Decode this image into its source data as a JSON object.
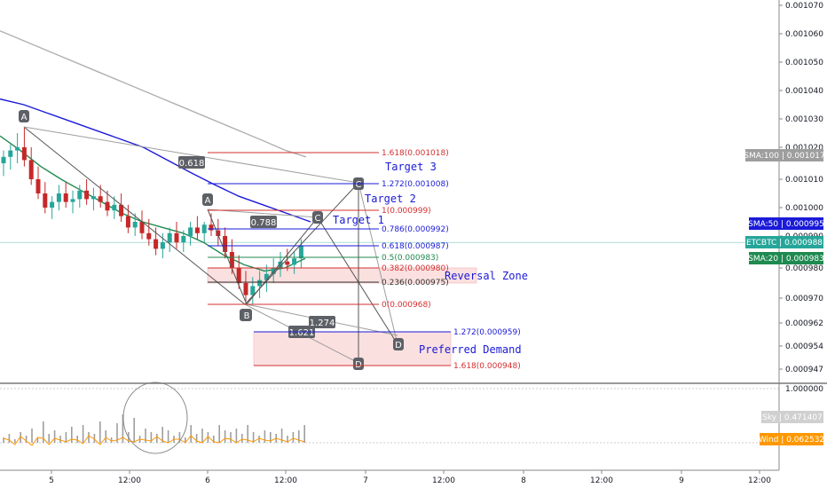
{
  "chart_data": {
    "type": "candlestick",
    "title": "",
    "xlabel": "",
    "ylabel": "",
    "ylim": [
      0.000941,
      0.00107
    ],
    "x_ticks": [
      "5",
      "12:00",
      "6",
      "12:00",
      "7",
      "12:00",
      "8",
      "12:00",
      "9",
      "12:00"
    ],
    "y_ticks": [
      "0.001070",
      "0.001060",
      "0.001050",
      "0.001040",
      "0.001030",
      "0.001020",
      "0.001010",
      "0.001000",
      "0.000990",
      "0.000980",
      "0.000970",
      "0.000962",
      "0.000954",
      "0.000947"
    ],
    "candles_ohlc": [
      [
        0.001015,
        0.001019,
        0.001011,
        0.001017
      ],
      [
        0.001017,
        0.001021,
        0.001013,
        0.001019
      ],
      [
        0.001019,
        0.001025,
        0.001015,
        0.00102
      ],
      [
        0.00102,
        0.001027,
        0.001014,
        0.001016
      ],
      [
        0.001016,
        0.00102,
        0.001008,
        0.00101
      ],
      [
        0.00101,
        0.001014,
        0.001003,
        0.001005
      ],
      [
        0.001005,
        0.001009,
        0.000998,
        0.001
      ],
      [
        0.001,
        0.001004,
        0.000996,
        0.001002
      ],
      [
        0.001002,
        0.001008,
        0.000999,
        0.001005
      ],
      [
        0.001005,
        0.001009,
        0.001,
        0.001002
      ],
      [
        0.001002,
        0.001006,
        0.000998,
        0.001003
      ],
      [
        0.001003,
        0.001008,
        0.001,
        0.001006
      ],
      [
        0.001006,
        0.00101,
        0.001001,
        0.001003
      ],
      [
        0.001003,
        0.001007,
        0.000999,
        0.001004
      ],
      [
        0.001004,
        0.001008,
        0.001,
        0.001002
      ],
      [
        0.001002,
        0.001006,
        0.000997,
        0.000999
      ],
      [
        0.000999,
        0.001004,
        0.000996,
        0.001001
      ],
      [
        0.001001,
        0.001005,
        0.000995,
        0.000997
      ],
      [
        0.000997,
        0.001001,
        0.000991,
        0.000993
      ],
      [
        0.000993,
        0.000998,
        0.00099,
        0.000995
      ],
      [
        0.000995,
        0.000999,
        0.000989,
        0.000991
      ],
      [
        0.000991,
        0.000996,
        0.000987,
        0.000989
      ],
      [
        0.000989,
        0.000993,
        0.000984,
        0.000986
      ],
      [
        0.000986,
        0.000991,
        0.000983,
        0.000988
      ],
      [
        0.000988,
        0.000993,
        0.000985,
        0.000991
      ],
      [
        0.000991,
        0.000995,
        0.000986,
        0.000988
      ],
      [
        0.000988,
        0.000992,
        0.000985,
        0.00099
      ],
      [
        0.00099,
        0.000995,
        0.000987,
        0.000993
      ],
      [
        0.000993,
        0.000997,
        0.000989,
        0.000991
      ],
      [
        0.000991,
        0.000995,
        0.000988,
        0.000994
      ],
      [
        0.000994,
        0.000998,
        0.00099,
        0.000992
      ],
      [
        0.000992,
        0.000996,
        0.000987,
        0.00099
      ],
      [
        0.00099,
        0.000993,
        0.000983,
        0.000985
      ],
      [
        0.000985,
        0.000989,
        0.000978,
        0.00098
      ],
      [
        0.00098,
        0.000984,
        0.000973,
        0.000975
      ],
      [
        0.000975,
        0.000979,
        0.000969,
        0.000971
      ],
      [
        0.000971,
        0.000977,
        0.000968,
        0.000974
      ],
      [
        0.000974,
        0.000979,
        0.00097,
        0.000976
      ],
      [
        0.000976,
        0.000981,
        0.000972,
        0.000978
      ],
      [
        0.000978,
        0.000983,
        0.000975,
        0.00098
      ],
      [
        0.00098,
        0.000985,
        0.000977,
        0.000982
      ],
      [
        0.000982,
        0.000986,
        0.000979,
        0.000981
      ],
      [
        0.000981,
        0.000985,
        0.000978,
        0.000983
      ],
      [
        0.000983,
        0.000989,
        0.00098,
        0.000987
      ]
    ],
    "sma_series": [
      {
        "name": "SMA:100",
        "value": "0.001017",
        "color": "#b0b0b0",
        "values": [
          0.001061,
          0.001058,
          0.001055,
          0.001052,
          0.001049,
          0.001046,
          0.001043,
          0.00104,
          0.001037,
          0.001034,
          0.001031,
          0.001028,
          0.001025,
          0.001022,
          0.001019,
          0.001017
        ]
      },
      {
        "name": "SMA:50",
        "value": "0.000995",
        "color": "#1a1ad8",
        "values": [
          0.001037,
          0.001035,
          0.001032,
          0.001029,
          0.001026,
          0.001023,
          0.00102,
          0.001016,
          0.001012,
          0.001008,
          0.001004,
          0.001001,
          0.000998,
          0.000995
        ]
      },
      {
        "name": "SMA:20",
        "value": "0.000983",
        "color": "#1f8a50",
        "values": [
          0.001024,
          0.001019,
          0.001014,
          0.00101,
          0.001006,
          0.001002,
          0.000998,
          0.000995,
          0.000993,
          0.000991,
          0.000988,
          0.000984,
          0.000981,
          0.000979,
          0.00098,
          0.000983
        ]
      }
    ],
    "price_tag": {
      "name": "ETCBTC",
      "value": "0.000988",
      "color": "#26a69a"
    },
    "fib_inner": [
      {
        "label": "1.618(0.001018)",
        "color": "#d32f2f"
      },
      {
        "label": "1.272(0.001008)",
        "color": "#1a1ad8"
      },
      {
        "label": "1(0.000999)",
        "color": "#d32f2f"
      },
      {
        "label": "0.786(0.000992)",
        "color": "#1a1ad8"
      },
      {
        "label": "0.618(0.000987)",
        "color": "#1a1ad8"
      },
      {
        "label": "0.5(0.000983)",
        "color": "#1f8a50"
      },
      {
        "label": "0.382(0.000980)",
        "color": "#d32f2f"
      },
      {
        "label": "0.236(0.000975)",
        "color": "#333333"
      },
      {
        "label": "0(0.000968)",
        "color": "#d32f2f"
      }
    ],
    "fib_outer": [
      {
        "label": "1.272(0.000959)",
        "color": "#1a1ad8"
      },
      {
        "label": "1.618(0.000948)",
        "color": "#d32f2f"
      }
    ],
    "pattern_points": [
      "A",
      "B",
      "C",
      "D",
      "A",
      "B",
      "C",
      "D"
    ],
    "ratio_badges": [
      "0.618",
      "0.788",
      "1.274",
      "1.621"
    ],
    "annotations": [
      "Target 3",
      "Target 2",
      "Target 1",
      "Reversal Zone",
      "Preferred Demand"
    ],
    "indicator": {
      "axis_top": "1.000000",
      "sky": {
        "name": "Sky",
        "value": "0.471407",
        "color": "#9e9e9e"
      },
      "wind": {
        "name": "Wind",
        "value": "0.062532",
        "color": "#ff9800"
      },
      "sky_values": [
        0.15,
        0.25,
        0.1,
        0.3,
        0.2,
        0.4,
        0.15,
        0.6,
        0.25,
        0.35,
        0.2,
        0.3,
        0.45,
        0.2,
        0.5,
        0.3,
        0.25,
        0.6,
        0.35,
        0.15,
        0.55,
        0.8,
        0.3,
        0.7,
        0.2,
        0.4,
        0.3,
        0.25,
        0.45,
        0.35,
        0.2,
        0.3,
        0.15,
        0.5,
        0.25,
        0.4,
        0.3,
        0.2,
        0.5,
        0.35,
        0.3,
        0.4,
        0.25,
        0.5,
        0.3,
        0.2,
        0.35,
        0.3,
        0.25,
        0.4,
        0.2,
        0.3,
        0.35,
        0.5
      ],
      "wind_values": [
        0.25,
        0.3,
        0.2,
        0.35,
        0.25,
        0.15,
        0.3,
        0.4,
        0.2,
        0.25,
        0.3,
        0.35,
        0.2,
        0.3,
        0.25,
        0.4,
        0.35,
        0.2,
        0.3,
        0.25,
        0.45,
        0.3,
        0.25,
        0.35,
        0.2,
        0.3,
        0.4,
        0.35,
        0.25,
        0.3,
        0.2,
        0.35,
        0.3,
        0.4,
        0.25,
        0.3,
        0.35,
        0.2,
        0.3,
        0.25,
        0.35,
        0.3,
        0.2,
        0.3,
        0.35,
        0.25,
        0.3,
        0.4,
        0.25,
        0.3,
        0.35,
        0.25,
        0.3,
        0.35
      ]
    }
  }
}
